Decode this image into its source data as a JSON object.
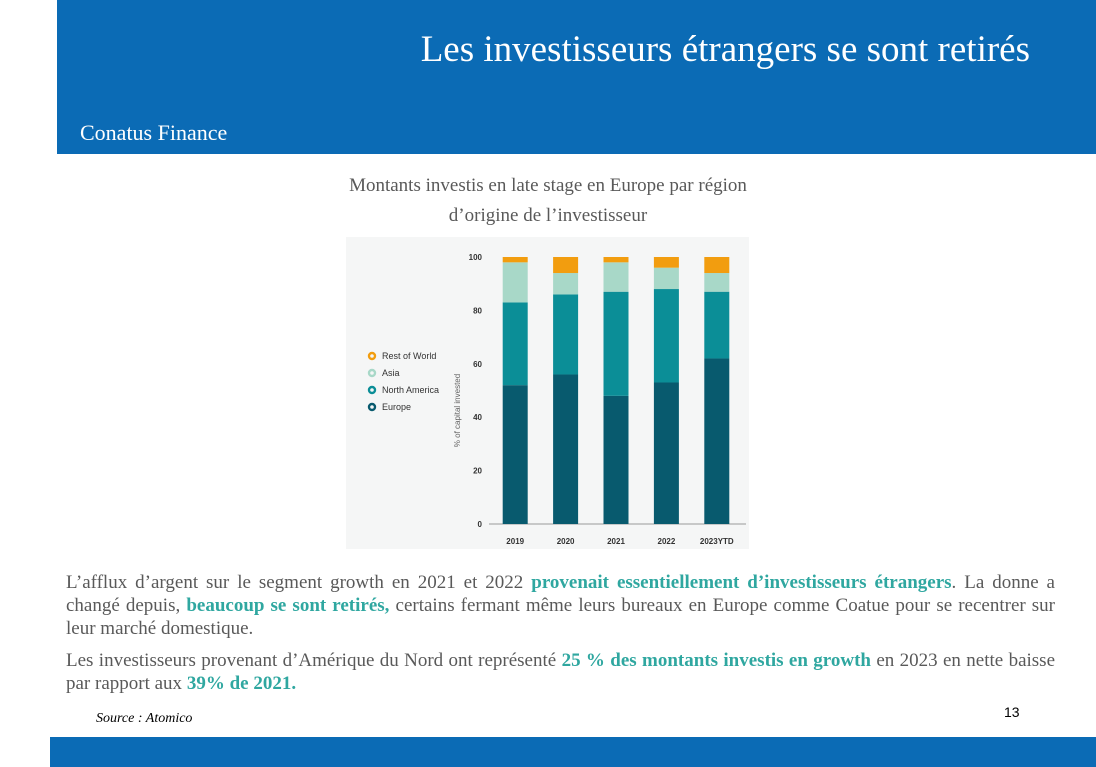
{
  "slide": {
    "title": "Les investisseurs étrangers se sont retirés",
    "brand": "Conatus Finance",
    "chart_caption_line1": "Montants investis en late stage en Europe par région",
    "chart_caption_line2": "d’origine de l’investisseur",
    "source": "Source : Atomico",
    "page_number": "13"
  },
  "paragraph1": {
    "a": "L’afflux d’argent sur le segment growth en 2021 et 2022 ",
    "b": "provenait essentiellement d’investisseurs étrangers",
    "c": ". La donne a changé depuis, ",
    "d": "beaucoup se sont retirés,",
    "e": " certains fermant même leurs bureaux en Europe comme Coatue pour se recentrer sur leur marché domestique."
  },
  "paragraph2": {
    "a": "Les investisseurs provenant d’Amérique du Nord ont représenté ",
    "b": "25 % des montants investis en growth",
    "c": " en 2023 en nette baisse par rapport aux ",
    "d": "39% de 2021."
  },
  "colors": {
    "header": "#0b6bb5",
    "highlight": "#2fa7a0",
    "europe": "#085a6e",
    "north_america": "#0b8e97",
    "asia": "#a8d8c8",
    "rest_of_world": "#f29d0f"
  },
  "chart_data": {
    "type": "bar",
    "stacked": true,
    "categories": [
      "2019",
      "2020",
      "2021",
      "2022",
      "2023YTD"
    ],
    "ylabel": "% of capital invested",
    "ylim": [
      0,
      100
    ],
    "yticks": [
      0,
      20,
      40,
      60,
      80,
      100
    ],
    "legend_position": "left",
    "series": [
      {
        "name": "Europe",
        "color": "#085a6e",
        "values": [
          52,
          56,
          48,
          53,
          62
        ]
      },
      {
        "name": "North America",
        "color": "#0b8e97",
        "values": [
          31,
          30,
          39,
          35,
          25
        ]
      },
      {
        "name": "Asia",
        "color": "#a8d8c8",
        "values": [
          15,
          8,
          11,
          8,
          7
        ]
      },
      {
        "name": "Rest of World",
        "color": "#f29d0f",
        "values": [
          2,
          6,
          2,
          4,
          6
        ]
      }
    ],
    "legend_order": [
      "Rest of World",
      "Asia",
      "North America",
      "Europe"
    ]
  }
}
